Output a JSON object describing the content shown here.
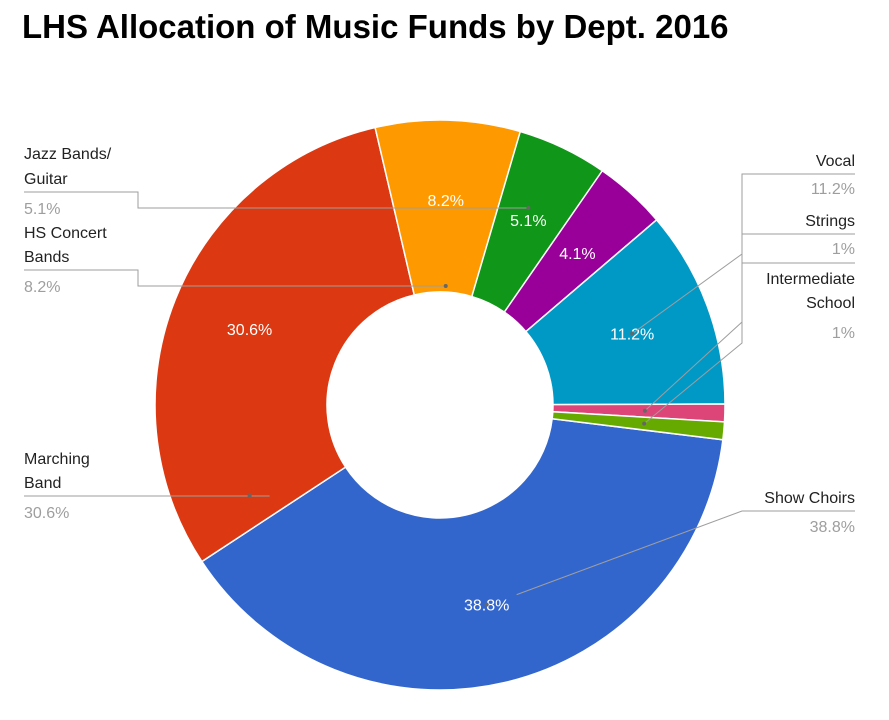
{
  "chart_data": {
    "type": "pie",
    "title": "LHS Allocation of Music Funds by Dept. 2016",
    "donut": true,
    "legend": "callouts",
    "slices": [
      {
        "name": "Show Choirs",
        "value": 38.8,
        "value_label": "38.8%",
        "label_lines": [
          "Show Choirs"
        ],
        "color": "#3366cc"
      },
      {
        "name": "Marching Band",
        "value": 30.6,
        "value_label": "30.6%",
        "label_lines": [
          "Marching",
          "Band"
        ],
        "color": "#dc3912"
      },
      {
        "name": "HS Concert Bands",
        "value": 8.2,
        "value_label": "8.2%",
        "label_lines": [
          "HS Concert",
          "Bands"
        ],
        "color": "#ff9900"
      },
      {
        "name": "Jazz Bands/ Guitar",
        "value": 5.1,
        "value_label": "5.1%",
        "label_lines": [
          "Jazz Bands/",
          "Guitar"
        ],
        "color": "#109618"
      },
      {
        "name": "",
        "value": 4.1,
        "value_label": "4.1%",
        "label_lines": [],
        "color": "#990099"
      },
      {
        "name": "Vocal",
        "value": 11.2,
        "value_label": "11.2%",
        "label_lines": [
          "Vocal"
        ],
        "color": "#0099c6"
      },
      {
        "name": "Strings",
        "value": 1,
        "value_label": "1%",
        "label_lines": [
          "Strings"
        ],
        "color": "#dd4477"
      },
      {
        "name": "Intermediate School",
        "value": 1,
        "value_label": "1%",
        "label_lines": [
          "Intermediate",
          "School"
        ],
        "color": "#66aa00"
      }
    ]
  }
}
